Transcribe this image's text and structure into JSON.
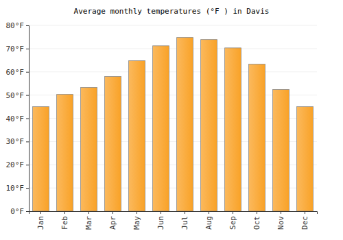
{
  "chart_data": {
    "type": "bar",
    "title": "Average monthly temperatures (°F ) in Davis",
    "categories": [
      "Jan",
      "Feb",
      "Mar",
      "Apr",
      "May",
      "Jun",
      "Jul",
      "Aug",
      "Sep",
      "Oct",
      "Nov",
      "Dec"
    ],
    "values": [
      45,
      50.3,
      53.3,
      58,
      64.8,
      71.2,
      74.8,
      73.9,
      70.3,
      63.3,
      52.4,
      45
    ],
    "color": "#f9a227",
    "ylim": [
      0,
      80
    ],
    "yticks": [
      {
        "value": 0,
        "label": "0°F"
      },
      {
        "value": 10,
        "label": "10°F"
      },
      {
        "value": 20,
        "label": "20°F"
      },
      {
        "value": 30,
        "label": "30°F"
      },
      {
        "value": 40,
        "label": "40°F"
      },
      {
        "value": 50,
        "label": "50°F"
      },
      {
        "value": 60,
        "label": "60°F"
      },
      {
        "value": 70,
        "label": "70°F"
      },
      {
        "value": 80,
        "label": "80°F"
      }
    ],
    "grid": true
  }
}
